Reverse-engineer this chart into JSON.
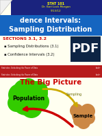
{
  "title_header": "STAT 101",
  "subtitle_header": "Dr. Kari Lock Morgan",
  "date_header": "9/13/12",
  "slide_title_line1": "dence Intervals:",
  "slide_title_line2": "Sampling Distribution",
  "sections_label": "SECTIONS 3.1, 3.2",
  "bullet1": "▪ Sampling Distributions (3.1)",
  "bullet2": "▪ Confidence Intervals (3.2)",
  "footer_left": "Statistics: Unlocking the Power of Data",
  "footer_right": "Lock³",
  "big_picture_title": "The Big Picture",
  "pop_label": "Population",
  "sampling_label": "Sampling",
  "sample_label": "Sample",
  "slide_bg": "#fffff0",
  "header_bg": "#1a237e",
  "title_box_bg": "#1565c0",
  "footer_bg": "#b71c1c",
  "sections_color": "#cc0000",
  "big_picture_color": "#cc0000",
  "pop_color": "#33cc00",
  "sample_color": "#cc8844",
  "arrow_yellow": "#ccaa00",
  "arrow_red": "#cc0000",
  "pdf_bg": "#0d2444",
  "bottom_bg": "#ffffff",
  "corner_color": "#f0f0f0"
}
